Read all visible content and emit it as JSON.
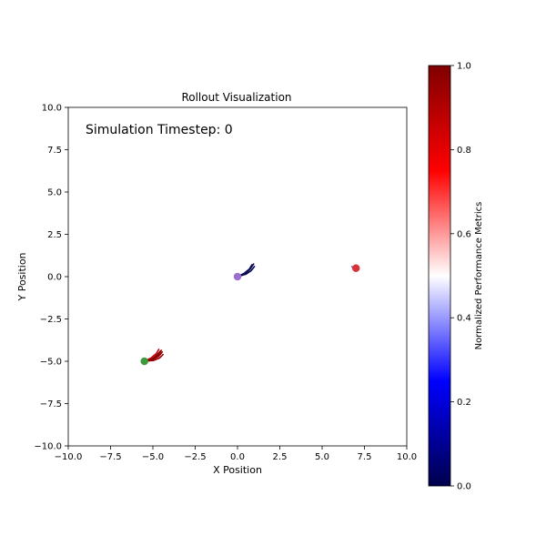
{
  "chart_data": {
    "type": "scatter",
    "title": "Rollout Visualization",
    "xlabel": "X Position",
    "ylabel": "Y Position",
    "xlim": [
      -10,
      10
    ],
    "ylim": [
      -10,
      10
    ],
    "xticks": [
      -10,
      -7.5,
      -5,
      -2.5,
      0,
      2.5,
      5,
      7.5,
      10
    ],
    "yticks": [
      -10,
      -7.5,
      -5,
      -2.5,
      0,
      2.5,
      5,
      7.5,
      10
    ],
    "xtick_labels": [
      "−10.0",
      "−7.5",
      "−5.0",
      "−2.5",
      "0.0",
      "2.5",
      "5.0",
      "7.5",
      "10.0"
    ],
    "ytick_labels": [
      "−10.0",
      "−7.5",
      "−5.0",
      "−2.5",
      "0.0",
      "2.5",
      "5.0",
      "7.5",
      "10.0"
    ],
    "annotation": "Simulation Timestep: 0",
    "grid": false,
    "colorbar": {
      "label": "Normalized Performance Metrics",
      "ticks": [
        0.0,
        0.2,
        0.4,
        0.6,
        0.8,
        1.0
      ],
      "tick_labels": [
        "0.0",
        "0.2",
        "0.4",
        "0.6",
        "0.8",
        "1.0"
      ],
      "colormap": "seismic",
      "stops": [
        "#00004c",
        "#0000ff",
        "#ffffff",
        "#ff0000",
        "#7f0000"
      ]
    },
    "points": [
      {
        "x": 0.0,
        "y": 0.0,
        "color": "#9b6fd0"
      },
      {
        "x": -5.5,
        "y": -5.0,
        "color": "#3c9a3c"
      },
      {
        "x": 7.0,
        "y": 0.5,
        "color": "#d9333a"
      }
    ],
    "trajectories": [
      {
        "color": "#00004c",
        "points": [
          [
            0.0,
            0.0
          ],
          [
            0.45,
            0.2
          ],
          [
            0.75,
            0.45
          ],
          [
            0.95,
            0.75
          ]
        ]
      },
      {
        "color": "#0a0a5a",
        "points": [
          [
            0.0,
            0.0
          ],
          [
            0.4,
            0.2
          ],
          [
            0.7,
            0.45
          ],
          [
            0.85,
            0.7
          ]
        ]
      },
      {
        "color": "#05054f",
        "points": [
          [
            0.0,
            0.0
          ],
          [
            0.5,
            0.15
          ],
          [
            0.8,
            0.35
          ],
          [
            1.0,
            0.6
          ]
        ]
      },
      {
        "color": "#b00000",
        "points": [
          [
            -5.5,
            -5.0
          ],
          [
            -5.0,
            -4.85
          ],
          [
            -4.7,
            -4.65
          ],
          [
            -4.5,
            -4.35
          ]
        ]
      },
      {
        "color": "#900000",
        "points": [
          [
            -5.5,
            -5.0
          ],
          [
            -5.0,
            -4.9
          ],
          [
            -4.65,
            -4.7
          ],
          [
            -4.45,
            -4.45
          ]
        ]
      },
      {
        "color": "#c00000",
        "points": [
          [
            -5.5,
            -5.0
          ],
          [
            -5.1,
            -4.8
          ],
          [
            -4.8,
            -4.55
          ],
          [
            -4.65,
            -4.3
          ]
        ]
      },
      {
        "color": "#a00000",
        "points": [
          [
            -5.5,
            -5.0
          ],
          [
            -4.95,
            -4.95
          ],
          [
            -4.6,
            -4.8
          ],
          [
            -4.4,
            -4.6
          ]
        ]
      },
      {
        "color": "#800000",
        "points": [
          [
            -5.5,
            -5.0
          ],
          [
            -5.05,
            -4.88
          ],
          [
            -4.75,
            -4.62
          ],
          [
            -4.55,
            -4.4
          ]
        ]
      },
      {
        "color": "#6a6ae0",
        "points": [
          [
            6.85,
            0.5
          ],
          [
            6.75,
            0.6
          ]
        ]
      }
    ]
  }
}
